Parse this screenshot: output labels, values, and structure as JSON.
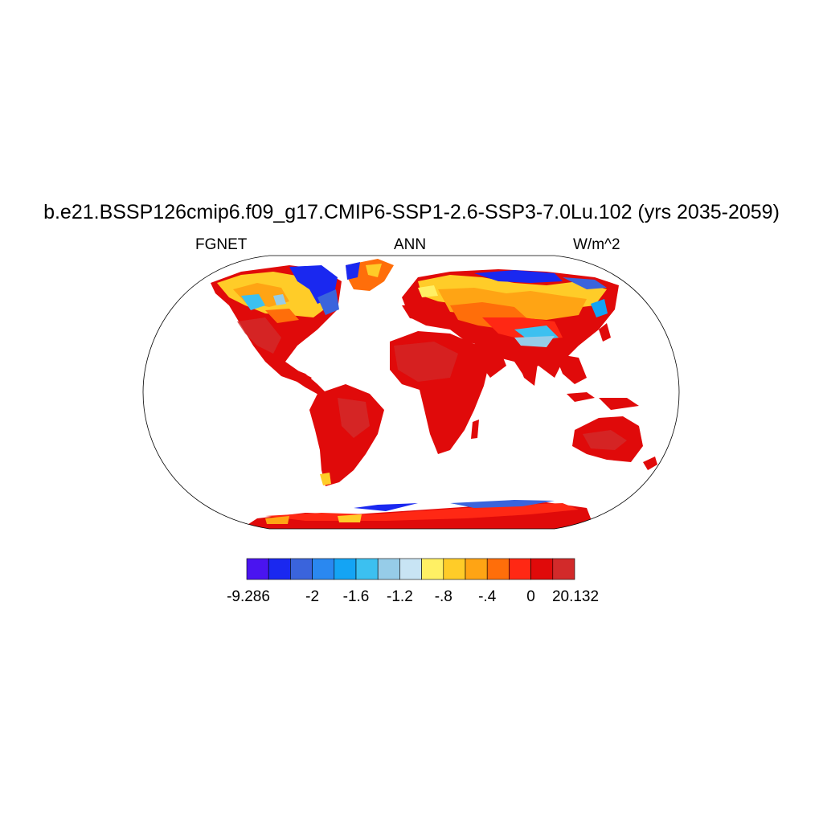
{
  "title": "b.e21.BSSP126cmip6.f09_g17.CMIP6-SSP1-2.6-SSP3-7.0Lu.102 (yrs 2035-2059)",
  "subtitle_left": "FGNET",
  "subtitle_center": "ANN",
  "subtitle_right": "W/m^2",
  "colorbar": {
    "colors": [
      "#4a14f0",
      "#1a28f0",
      "#3a64dc",
      "#2a88f0",
      "#14a4f4",
      "#3cc0f0",
      "#96cce8",
      "#c8e4f4",
      "#fff064",
      "#ffcc28",
      "#ffa414",
      "#ff6e0a",
      "#ff2814",
      "#e00a0a",
      "#d22a2a"
    ],
    "labels": [
      "-9.286",
      "-2",
      "-1.6",
      "-1.2",
      "-.8",
      "-.4",
      "0",
      "20.132"
    ]
  },
  "map": {
    "projection": "Robinson",
    "land_default_color": "#e00a0a",
    "ocean_color": "#ffffff"
  }
}
